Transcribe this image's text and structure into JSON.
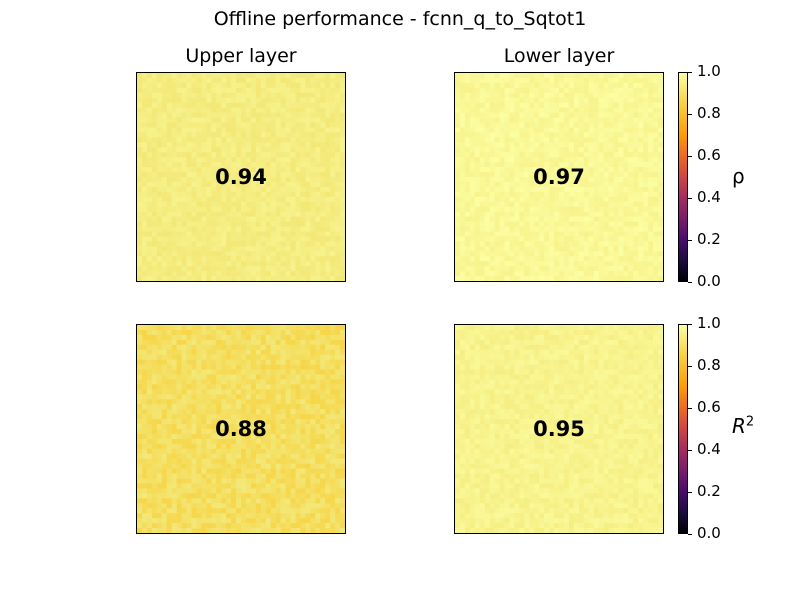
{
  "title": "Offline performance - fcnn_q_to_Sqtot1",
  "columns": [
    "Upper layer",
    "Lower layer"
  ],
  "chart_data": {
    "type": "heatmap",
    "colormap": "inferno",
    "vmin": 0.0,
    "vmax": 1.0,
    "rows": [
      {
        "metric": "ρ",
        "values": [
          0.94,
          0.97
        ],
        "mean_cell_values": [
          0.92,
          0.97
        ]
      },
      {
        "metric": "R²",
        "values": [
          0.88,
          0.95
        ],
        "mean_cell_values": [
          0.86,
          0.95
        ]
      }
    ],
    "colorbar_ticks": [
      "1.0",
      "0.8",
      "0.6",
      "0.4",
      "0.2",
      "0.0"
    ],
    "colorbar_labels": [
      "ρ",
      "R²"
    ]
  },
  "colors": {
    "panel_upper_top": "#f5df5d",
    "panel_lower_top": "#f4f594",
    "panel_upper_bottom": "#f8c02e",
    "panel_lower_bottom": "#f2e986"
  }
}
